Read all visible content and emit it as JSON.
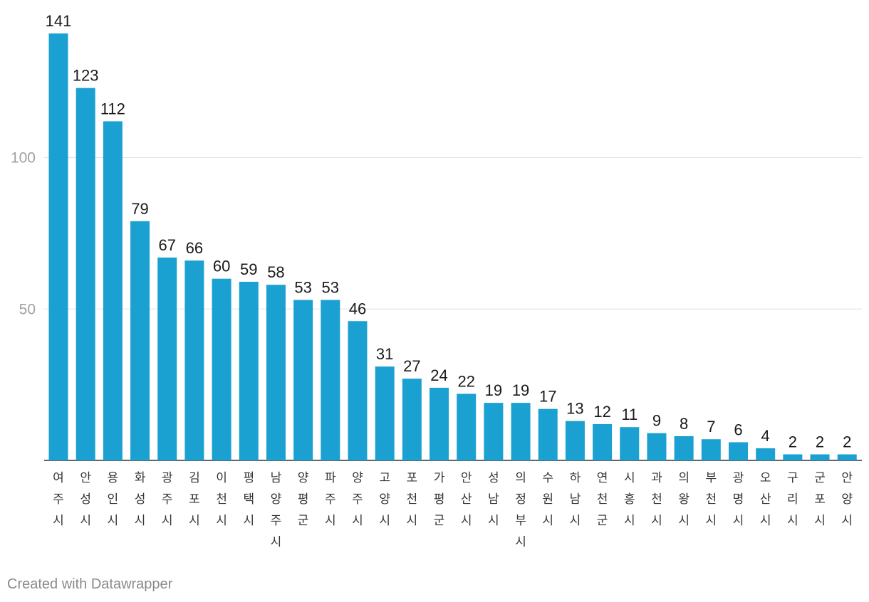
{
  "chart_data": {
    "type": "bar",
    "title": "",
    "xlabel": "",
    "ylabel": "",
    "ylim": [
      0,
      141
    ],
    "yticks": [
      50,
      100
    ],
    "grid": true,
    "bar_color": "#1ba1d1",
    "categories": [
      "여주시",
      "안성시",
      "용인시",
      "화성시",
      "광주시",
      "김포시",
      "이천시",
      "평택시",
      "남양주시",
      "양평군",
      "파주시",
      "양주시",
      "고양시",
      "포천시",
      "가평군",
      "안산시",
      "성남시",
      "의정부시",
      "수원시",
      "하남시",
      "연천군",
      "시흥시",
      "과천시",
      "의왕시",
      "부천시",
      "광명시",
      "오산시",
      "구리시",
      "군포시",
      "안양시"
    ],
    "values": [
      141,
      123,
      112,
      79,
      67,
      66,
      60,
      59,
      58,
      53,
      53,
      46,
      31,
      27,
      24,
      22,
      19,
      19,
      17,
      13,
      12,
      11,
      9,
      8,
      7,
      6,
      4,
      2,
      2,
      2
    ]
  },
  "credit": "Created with Datawrapper"
}
